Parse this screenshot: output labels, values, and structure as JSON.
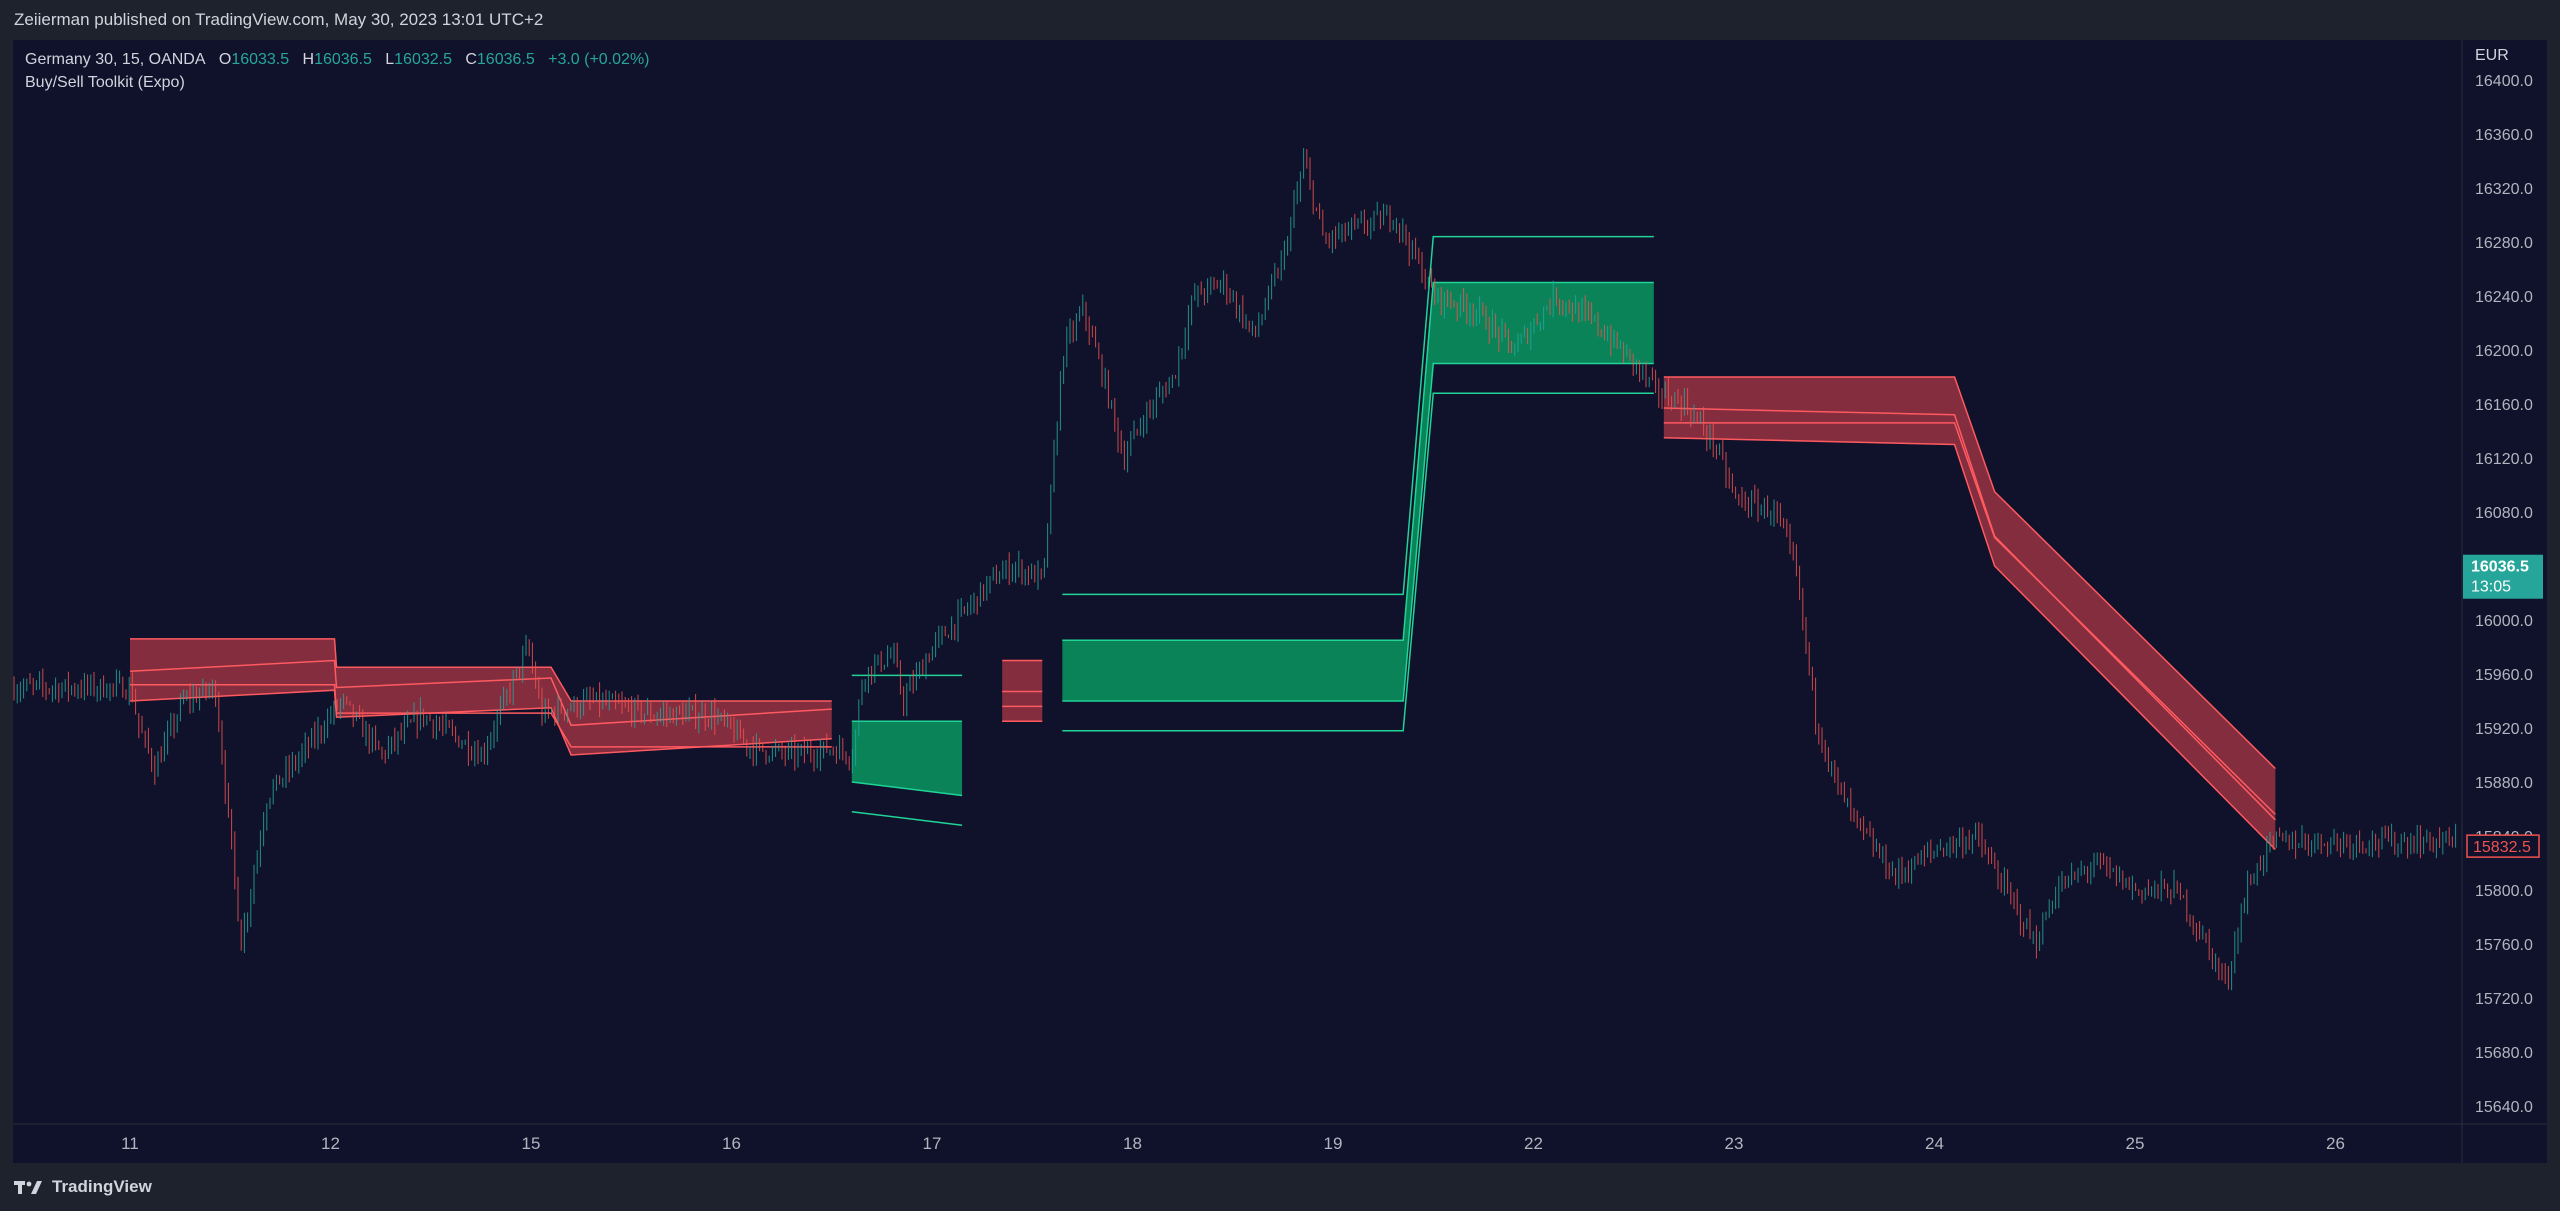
{
  "header": {
    "attribution": "Zeiierman published on TradingView.com, May 30, 2023 13:01 UTC+2"
  },
  "legend": {
    "symbol": "Germany 30, 15, OANDA",
    "open_label": "O",
    "open": "16033.5",
    "high_label": "H",
    "high": "16036.5",
    "low_label": "L",
    "low": "16032.5",
    "close_label": "C",
    "close": "16036.5",
    "change": "+3.0 (+0.02%)",
    "indicator": "Buy/Sell Toolkit (Expo)"
  },
  "footer": {
    "brand": "TradingView",
    "logo_icon": "tradingview-logo-icon"
  },
  "colors": {
    "background": "#10112b",
    "bull": "#26a69a",
    "bear": "#ef5350",
    "bull_band": "#0b8a5c",
    "bear_band": "#8a2f40",
    "bull_line": "#1fd496",
    "bear_line": "#ff5a5f"
  },
  "chart_data": {
    "type": "candlestick",
    "symbol": "Germany 30",
    "interval": "15",
    "currency": "EUR",
    "ylim": [
      15620,
      16410
    ],
    "y_ticks": [
      16400,
      16360,
      16320,
      16280,
      16240,
      16200,
      16160,
      16120,
      16080,
      16040,
      16000,
      15960,
      15920,
      15880,
      15840,
      15800,
      15760,
      15720,
      15680,
      15640
    ],
    "x_ticks": [
      "11",
      "12",
      "15",
      "16",
      "17",
      "18",
      "19",
      "22",
      "23",
      "24",
      "25",
      "26"
    ],
    "last_price": {
      "value": 16036.5,
      "label": "16036.5",
      "time": "13:05"
    },
    "level_marker": {
      "value": 15832.5,
      "label": "15832.5"
    },
    "price_path": [
      [
        0,
        15950
      ],
      [
        0.04,
        15920
      ],
      [
        0.12,
        15890
      ],
      [
        0.26,
        15940
      ],
      [
        0.42,
        15950
      ],
      [
        0.55,
        15760
      ],
      [
        0.68,
        15870
      ],
      [
        0.85,
        15900
      ],
      [
        1.05,
        15940
      ],
      [
        1.25,
        15900
      ],
      [
        1.45,
        15930
      ],
      [
        1.75,
        15900
      ],
      [
        1.98,
        15980
      ],
      [
        2.05,
        15930
      ],
      [
        2.3,
        15940
      ],
      [
        2.6,
        15930
      ],
      [
        2.9,
        15930
      ],
      [
        3.1,
        15905
      ],
      [
        3.3,
        15900
      ],
      [
        3.5,
        15905
      ],
      [
        3.6,
        15900
      ],
      [
        3.65,
        15960
      ],
      [
        3.8,
        15975
      ],
      [
        3.85,
        15940
      ],
      [
        4.0,
        15980
      ],
      [
        4.3,
        16030
      ],
      [
        4.4,
        16040
      ],
      [
        4.55,
        16030
      ],
      [
        4.65,
        16200
      ],
      [
        4.75,
        16230
      ],
      [
        4.85,
        16180
      ],
      [
        4.95,
        16120
      ],
      [
        5.05,
        16150
      ],
      [
        5.2,
        16180
      ],
      [
        5.3,
        16240
      ],
      [
        5.45,
        16250
      ],
      [
        5.6,
        16210
      ],
      [
        5.75,
        16270
      ],
      [
        5.85,
        16340
      ],
      [
        5.95,
        16280
      ],
      [
        6.1,
        16290
      ],
      [
        6.3,
        16300
      ],
      [
        6.4,
        16270
      ],
      [
        6.5,
        16240
      ],
      [
        6.7,
        16230
      ],
      [
        6.9,
        16200
      ],
      [
        7.1,
        16240
      ],
      [
        7.3,
        16220
      ],
      [
        7.5,
        16190
      ],
      [
        7.6,
        16170
      ],
      [
        7.75,
        16160
      ],
      [
        7.9,
        16130
      ],
      [
        8.0,
        16090
      ],
      [
        8.2,
        16080
      ],
      [
        8.3,
        16040
      ],
      [
        8.4,
        15930
      ],
      [
        8.5,
        15880
      ],
      [
        8.6,
        15850
      ],
      [
        8.8,
        15810
      ],
      [
        9.0,
        15830
      ],
      [
        9.2,
        15840
      ],
      [
        9.35,
        15800
      ],
      [
        9.5,
        15760
      ],
      [
        9.6,
        15800
      ],
      [
        9.8,
        15820
      ],
      [
        10.0,
        15800
      ],
      [
        10.2,
        15800
      ],
      [
        10.35,
        15760
      ],
      [
        10.45,
        15730
      ],
      [
        10.55,
        15800
      ],
      [
        10.65,
        15830
      ],
      [
        10.7,
        15836
      ]
    ],
    "bands": [
      {
        "name": "",
        "bias": "sell",
        "x": [
          0,
          1.02,
          1.03,
          2.1,
          2.2,
          3.5
        ],
        "upper": [
          15986,
          15986,
          15965,
          15965,
          15940,
          15940
        ],
        "lower": [
          15940,
          15948,
          15928,
          15935,
          15900,
          15912
        ]
      },
      {
        "name": "",
        "bias": "buy",
        "x": [
          3.6,
          4.15
        ],
        "upper": [
          15925,
          15925
        ],
        "lower": [
          15880,
          15870
        ]
      },
      {
        "name": "",
        "bias": "sell",
        "x": [
          4.35,
          4.55
        ],
        "upper": [
          15970,
          15970
        ],
        "lower": [
          15925,
          15925
        ]
      },
      {
        "name": "",
        "bias": "buy",
        "x": [
          4.65,
          6.35,
          6.5,
          7.6
        ],
        "upper": [
          15985,
          15985,
          16250,
          16250
        ],
        "lower": [
          15940,
          15940,
          16190,
          16190
        ]
      },
      {
        "name": "",
        "bias": "sell",
        "x": [
          7.65,
          9.1,
          9.3,
          10.7
        ],
        "upper": [
          16180,
          16180,
          16095,
          15890
        ],
        "lower": [
          16135,
          16130,
          16040,
          15830
        ]
      }
    ]
  }
}
